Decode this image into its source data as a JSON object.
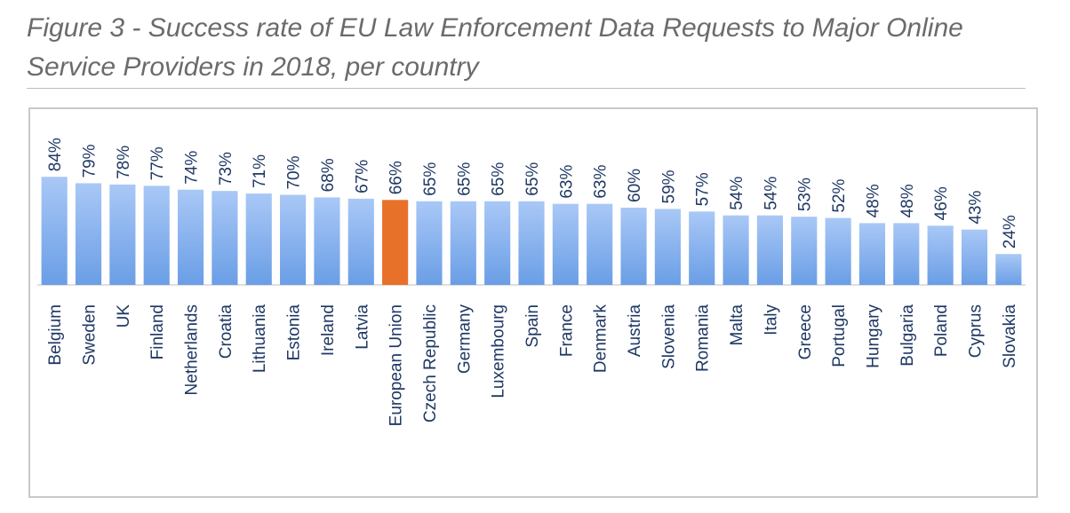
{
  "figure": {
    "title": "Figure 3 - Success rate of EU Law Enforcement Data Requests to Major Online Service Providers in 2018, per country"
  },
  "colors": {
    "bar": "#6a9ee6",
    "bar_top": "#a9c8f6",
    "bar_highlight": "#e8712a",
    "text": "#1f3864",
    "axis": "#bfbfbf"
  },
  "chart_data": {
    "type": "bar",
    "title": "",
    "xlabel": "",
    "ylabel": "",
    "ylim": [
      0,
      90
    ],
    "grid": false,
    "legend": "none",
    "value_format": "percent",
    "highlight_category": "European Union",
    "categories": [
      "Belgium",
      "Sweden",
      "UK",
      "Finland",
      "Netherlands",
      "Croatia",
      "Lithuania",
      "Estonia",
      "Ireland",
      "Latvia",
      "European Union",
      "Czech Republic",
      "Germany",
      "Luxembourg",
      "Spain",
      "France",
      "Denmark",
      "Austria",
      "Slovenia",
      "Romania",
      "Malta",
      "Italy",
      "Greece",
      "Portugal",
      "Hungary",
      "Bulgaria",
      "Poland",
      "Cyprus",
      "Slovakia"
    ],
    "values": [
      84,
      79,
      78,
      77,
      74,
      73,
      71,
      70,
      68,
      67,
      66,
      65,
      65,
      65,
      65,
      63,
      63,
      60,
      59,
      57,
      54,
      54,
      53,
      52,
      48,
      48,
      46,
      43,
      24
    ],
    "data_labels": [
      "84%",
      "79%",
      "78%",
      "77%",
      "74%",
      "73%",
      "71%",
      "70%",
      "68%",
      "67%",
      "66%",
      "65%",
      "65%",
      "65%",
      "65%",
      "63%",
      "63%",
      "60%",
      "59%",
      "57%",
      "54%",
      "54%",
      "53%",
      "52%",
      "48%",
      "48%",
      "46%",
      "43%",
      "24%"
    ]
  }
}
